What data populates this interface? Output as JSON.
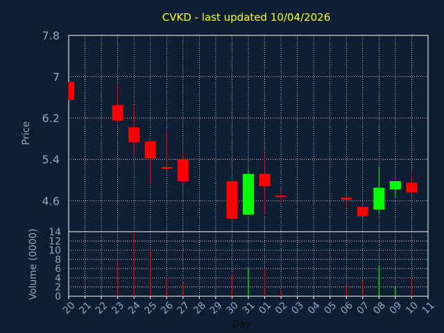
{
  "colors": {
    "background": "#0f1f33",
    "up": "#00ff00",
    "down": "#ff0000",
    "axis": "#ffffff",
    "grid": "#ffffff",
    "text": "#8fa7c7",
    "title": "#ffff00"
  },
  "chart_data": {
    "type": "candlestick",
    "title": "CVKD - last updated 10/04/2026",
    "xlabel": "Day",
    "price": {
      "ylabel": "Price",
      "ylim": [
        4.0,
        7.8
      ],
      "yticks": [
        "7.8",
        "7",
        "6.2",
        "5.4",
        "4.6"
      ],
      "ytick_values": [
        7.8,
        7.0,
        6.2,
        5.4,
        4.6
      ]
    },
    "volume": {
      "ylabel": "Volume (0000)",
      "ylim": [
        0,
        14
      ],
      "yticks": [
        "14",
        "12",
        "10",
        "8",
        "6",
        "4",
        "2",
        "0"
      ],
      "ytick_values": [
        14,
        12,
        10,
        8,
        6,
        4,
        2,
        0
      ]
    },
    "categories": [
      "20",
      "21",
      "22",
      "23",
      "24",
      "25",
      "26",
      "27",
      "28",
      "29",
      "30",
      "31",
      "01",
      "02",
      "03",
      "04",
      "05",
      "06",
      "07",
      "08",
      "09",
      "10",
      "11"
    ],
    "candles": [
      {
        "day": "20",
        "open": 6.9,
        "close": 6.55,
        "high": 6.9,
        "low": 6.55,
        "volume": 0
      },
      {
        "day": "23",
        "open": 6.45,
        "close": 6.15,
        "high": 6.85,
        "low": 6.1,
        "volume": 7.5
      },
      {
        "day": "24",
        "open": 6.02,
        "close": 5.73,
        "high": 6.45,
        "low": 5.48,
        "volume": 14
      },
      {
        "day": "25",
        "open": 5.75,
        "close": 5.42,
        "high": 5.75,
        "low": 4.92,
        "volume": 10
      },
      {
        "day": "26",
        "open": 5.25,
        "close": 5.22,
        "high": 5.95,
        "low": 5.22,
        "volume": 4
      },
      {
        "day": "27",
        "open": 5.4,
        "close": 4.98,
        "high": 5.55,
        "low": 4.9,
        "volume": 3
      },
      {
        "day": "30",
        "open": 4.98,
        "close": 4.25,
        "high": 4.98,
        "low": 4.25,
        "volume": 5
      },
      {
        "day": "31",
        "open": 4.33,
        "close": 5.12,
        "high": 5.2,
        "low": 4.33,
        "volume": 6
      },
      {
        "day": "01",
        "open": 5.12,
        "close": 4.88,
        "high": 5.52,
        "low": 4.32,
        "volume": 6
      },
      {
        "day": "02",
        "open": 4.7,
        "close": 4.68,
        "high": 4.8,
        "low": 4.55,
        "volume": 1.5
      },
      {
        "day": "06",
        "open": 4.66,
        "close": 4.62,
        "high": 4.68,
        "low": 4.47,
        "volume": 2.5
      },
      {
        "day": "07",
        "open": 4.48,
        "close": 4.3,
        "high": 4.48,
        "low": 4.3,
        "volume": 3.5
      },
      {
        "day": "08",
        "open": 4.43,
        "close": 4.85,
        "high": 5.25,
        "low": 4.35,
        "volume": 6.5
      },
      {
        "day": "09",
        "open": 4.82,
        "close": 4.98,
        "high": 4.98,
        "low": 4.65,
        "volume": 2
      },
      {
        "day": "10",
        "open": 4.95,
        "close": 4.76,
        "high": 5.15,
        "low": 4.76,
        "volume": 4
      }
    ]
  }
}
